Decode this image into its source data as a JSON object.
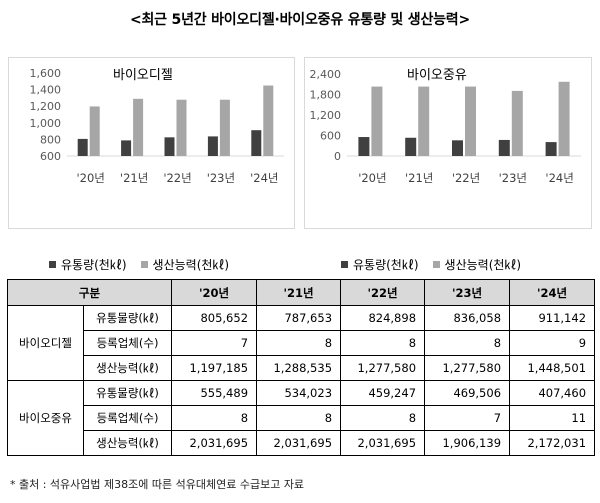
{
  "title": "<최근 5년간 바이오디젤·바이오중유 유통량 및 생산능력>",
  "chart_data": [
    {
      "type": "bar",
      "title": "바이오디젤",
      "categories": [
        "'20년",
        "'21년",
        "'22년",
        "'23년",
        "'24년"
      ],
      "ylim": [
        600,
        1600
      ],
      "yticks": [
        "1,600",
        "1,400",
        "1,200",
        "1,000",
        "800",
        "600"
      ],
      "series": [
        {
          "name": "유통량(천㎘)",
          "color": "#404040",
          "values": [
            806,
            788,
            825,
            836,
            911
          ]
        },
        {
          "name": "생산능력(천㎘)",
          "color": "#a6a6a6",
          "values": [
            1197,
            1289,
            1278,
            1278,
            1449
          ]
        }
      ]
    },
    {
      "type": "bar",
      "title": "바이오중유",
      "categories": [
        "'20년",
        "'21년",
        "'22년",
        "'23년",
        "'24년"
      ],
      "ylim": [
        0,
        2400
      ],
      "yticks": [
        "2,400",
        "1,800",
        "1,200",
        "600",
        "0"
      ],
      "series": [
        {
          "name": "유통량(천㎘)",
          "color": "#404040",
          "values": [
            555,
            534,
            459,
            470,
            407
          ]
        },
        {
          "name": "생산능력(천㎘)",
          "color": "#a6a6a6",
          "values": [
            2032,
            2032,
            2032,
            1906,
            2172
          ]
        }
      ]
    }
  ],
  "table": {
    "headers": [
      "구분",
      "'20년",
      "'21년",
      "'22년",
      "'23년",
      "'24년"
    ],
    "groups": [
      {
        "name": "바이오디젤",
        "rows": [
          {
            "label": "유통물량(㎘)",
            "values": [
              "805,652",
              "787,653",
              "824,898",
              "836,058",
              "911,142"
            ]
          },
          {
            "label": "등록업체(수)",
            "values": [
              "7",
              "8",
              "8",
              "8",
              "9"
            ]
          },
          {
            "label": "생산능력(㎘)",
            "values": [
              "1,197,185",
              "1,288,535",
              "1,277,580",
              "1,277,580",
              "1,448,501"
            ]
          }
        ]
      },
      {
        "name": "바이오중유",
        "rows": [
          {
            "label": "유통물량(㎘)",
            "values": [
              "555,489",
              "534,023",
              "459,247",
              "469,506",
              "407,460"
            ]
          },
          {
            "label": "등록업체(수)",
            "values": [
              "8",
              "8",
              "8",
              "7",
              "11"
            ]
          },
          {
            "label": "생산능력(㎘)",
            "values": [
              "2,031,695",
              "2,031,695",
              "2,031,695",
              "1,906,139",
              "2,172,031"
            ]
          }
        ]
      }
    ]
  },
  "note": "* 출처 : 석유사업법 제38조에 따른 석유대체연료 수급보고 자료"
}
